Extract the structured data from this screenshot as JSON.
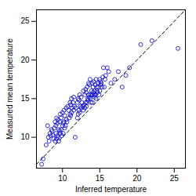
{
  "chart_data": {
    "type": "scatter",
    "xlabel": "Inferred temperature",
    "ylabel": "Measured mean temperature",
    "xlim": [
      6.5,
      26.5
    ],
    "ylim": [
      6.0,
      26.5
    ],
    "xticks": [
      10,
      15,
      20,
      25
    ],
    "yticks": [
      10,
      15,
      20,
      25
    ],
    "series": [
      {
        "type": "scatter",
        "color": "#0000CC",
        "marker": "circle",
        "x": [
          7.2,
          7.4,
          7.8,
          8.0,
          8.1,
          8.2,
          8.3,
          8.4,
          8.5,
          8.6,
          8.7,
          8.8,
          8.9,
          9.0,
          9.0,
          9.1,
          9.1,
          9.2,
          9.2,
          9.3,
          9.3,
          9.4,
          9.4,
          9.5,
          9.5,
          9.6,
          9.6,
          9.7,
          9.7,
          9.8,
          9.8,
          9.9,
          10.0,
          10.0,
          10.1,
          10.1,
          10.2,
          10.2,
          10.3,
          10.3,
          10.4,
          10.5,
          10.5,
          10.6,
          10.7,
          10.8,
          10.9,
          11.0,
          11.0,
          11.1,
          11.1,
          11.2,
          11.2,
          11.3,
          11.4,
          11.5,
          11.5,
          11.6,
          11.7,
          11.8,
          12.0,
          12.0,
          12.1,
          12.1,
          12.2,
          12.2,
          12.3,
          12.3,
          12.4,
          12.5,
          12.5,
          12.6,
          12.7,
          12.8,
          12.8,
          12.9,
          13.0,
          13.0,
          13.1,
          13.1,
          13.2,
          13.2,
          13.3,
          13.3,
          13.4,
          13.4,
          13.5,
          13.5,
          13.6,
          13.6,
          13.7,
          13.7,
          13.8,
          13.8,
          13.9,
          14.0,
          14.0,
          14.0,
          14.1,
          14.1,
          14.2,
          14.2,
          14.3,
          14.3,
          14.4,
          14.4,
          14.5,
          14.5,
          14.6,
          14.6,
          14.7,
          14.8,
          14.8,
          14.9,
          15.0,
          15.0,
          15.1,
          15.1,
          15.2,
          15.3,
          15.4,
          15.5,
          15.6,
          15.7,
          15.8,
          16.0,
          16.2,
          16.5,
          17.0,
          17.5,
          18.0,
          18.5,
          19.0,
          20.5,
          22.0,
          25.5
        ],
        "values": [
          6.5,
          7.2,
          9.0,
          11.5,
          10.0,
          9.5,
          10.5,
          10.2,
          11.0,
          10.8,
          10.3,
          9.8,
          11.2,
          9.5,
          12.0,
          10.5,
          11.5,
          9.8,
          12.5,
          10.2,
          11.8,
          10.0,
          12.3,
          9.5,
          11.0,
          10.8,
          12.0,
          10.5,
          13.0,
          11.0,
          12.5,
          10.2,
          11.5,
          13.2,
          11.8,
          10.5,
          12.0,
          13.5,
          11.2,
          12.8,
          11.5,
          12.3,
          13.8,
          12.0,
          14.0,
          13.5,
          12.5,
          13.0,
          14.5,
          12.8,
          14.2,
          13.2,
          15.0,
          13.8,
          14.5,
          13.5,
          15.2,
          14.0,
          10.0,
          13.8,
          12.5,
          14.5,
          13.0,
          15.0,
          13.5,
          14.8,
          13.2,
          15.5,
          14.0,
          13.8,
          15.2,
          14.5,
          14.0,
          13.5,
          16.0,
          14.2,
          13.8,
          15.5,
          14.5,
          16.2,
          14.0,
          15.8,
          14.5,
          16.5,
          15.0,
          14.8,
          15.5,
          17.0,
          15.2,
          16.8,
          15.0,
          17.5,
          15.5,
          14.5,
          16.0,
          15.5,
          17.0,
          14.5,
          16.5,
          15.8,
          15.5,
          17.2,
          16.0,
          15.2,
          16.8,
          15.5,
          15.0,
          17.5,
          16.5,
          16.0,
          15.8,
          17.0,
          16.5,
          15.5,
          17.5,
          16.0,
          16.8,
          17.2,
          17.0,
          16.5,
          17.8,
          19.0,
          16.5,
          17.5,
          18.0,
          19.0,
          18.5,
          17.0,
          17.5,
          18.5,
          16.5,
          18.0,
          19.0,
          22.0,
          22.5,
          21.5
        ]
      },
      {
        "type": "line",
        "color": "black",
        "line_style": "dashed",
        "x": [
          6.5,
          26.5
        ],
        "values": [
          6.5,
          26.5
        ]
      }
    ]
  }
}
